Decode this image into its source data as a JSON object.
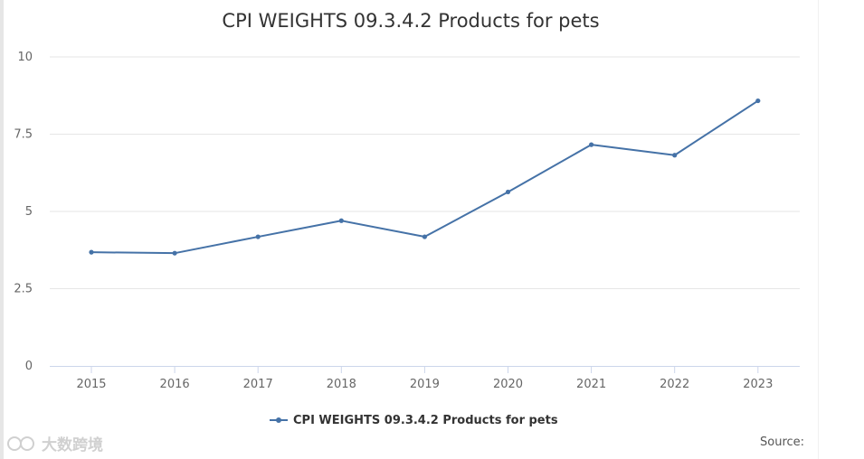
{
  "chart_data": {
    "type": "line",
    "title": "CPI WEIGHTS 09.3.4.2 Products for pets",
    "xlabel": "",
    "ylabel": "",
    "ylim": [
      0,
      10
    ],
    "yticks": [
      "0",
      "2.5",
      "5",
      "7.5",
      "10"
    ],
    "ytick_values": [
      0,
      2.5,
      5,
      7.5,
      10
    ],
    "categories": [
      "2015",
      "2016",
      "2017",
      "2018",
      "2019",
      "2020",
      "2021",
      "2022",
      "2023"
    ],
    "series": [
      {
        "name": "CPI WEIGHTS 09.3.4.2 Products for pets",
        "color": "#4572a7",
        "values": [
          3.68,
          3.65,
          4.18,
          4.7,
          4.18,
          5.63,
          7.16,
          6.82,
          8.58
        ]
      }
    ],
    "legend_position": "bottom-center",
    "grid": true
  },
  "footer": {
    "source_label": "Source:"
  },
  "watermark": {
    "text": "大数跨境"
  }
}
